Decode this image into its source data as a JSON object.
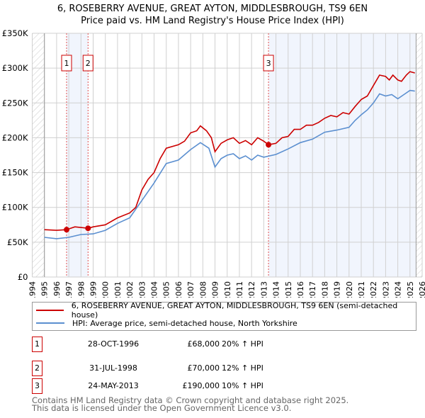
{
  "title": "6, ROSEBERRY AVENUE, GREAT AYTON, MIDDLESBROUGH, TS9 6EN",
  "subtitle": "Price paid vs. HM Land Registry's House Price Index (HPI)",
  "chart_data": {
    "type": "line",
    "title": "6, ROSEBERRY AVENUE, GREAT AYTON, MIDDLESBROUGH, TS9 6EN",
    "subtitle": "Price paid vs. HM Land Registry's House Price Index (HPI)",
    "xlim": [
      1994,
      2026
    ],
    "ylim": [
      0,
      350000
    ],
    "grid": true,
    "x_ticks": [
      "1994",
      "1995",
      "1996",
      "1997",
      "1998",
      "1999",
      "2000",
      "2001",
      "2002",
      "2003",
      "2004",
      "2005",
      "2006",
      "2007",
      "2008",
      "2009",
      "2010",
      "2011",
      "2012",
      "2013",
      "2014",
      "2015",
      "2016",
      "2017",
      "2018",
      "2019",
      "2020",
      "2021",
      "2022",
      "2023",
      "2024",
      "2025",
      "2026"
    ],
    "y_ticks": [
      {
        "v": 0,
        "label": "£0"
      },
      {
        "v": 50000,
        "label": "£50K"
      },
      {
        "v": 100000,
        "label": "£100K"
      },
      {
        "v": 150000,
        "label": "£150K"
      },
      {
        "v": 200000,
        "label": "£200K"
      },
      {
        "v": 250000,
        "label": "£250K"
      },
      {
        "v": 300000,
        "label": "£300K"
      },
      {
        "v": 350000,
        "label": "£350K"
      }
    ],
    "series": [
      {
        "name": "6, ROSEBERRY AVENUE, GREAT AYTON, MIDDLESBROUGH, TS9 6EN (semi-detached house)",
        "color": "#cc0000",
        "x": [
          1995,
          1996,
          1996.8,
          1997.5,
          1998.6,
          1999,
          2000,
          2001,
          2002,
          2002.5,
          2003,
          2003.5,
          2004,
          2004.5,
          2005,
          2006,
          2006.5,
          2007,
          2007.5,
          2007.8,
          2008.3,
          2008.7,
          2009,
          2009.5,
          2010,
          2010.5,
          2011,
          2011.5,
          2012,
          2012.5,
          2013,
          2013.4,
          2014,
          2014.5,
          2015,
          2015.5,
          2016,
          2016.5,
          2017,
          2017.5,
          2018,
          2018.5,
          2019,
          2019.5,
          2020,
          2020.5,
          2021,
          2021.5,
          2022,
          2022.5,
          2023,
          2023.3,
          2023.6,
          2024,
          2024.3,
          2024.7,
          2025,
          2025.4
        ],
        "y": [
          68000,
          67000,
          68000,
          72000,
          70000,
          72000,
          75000,
          85000,
          92000,
          100000,
          125000,
          140000,
          150000,
          170000,
          185000,
          190000,
          195000,
          207000,
          210000,
          217000,
          210000,
          200000,
          180000,
          192000,
          197000,
          200000,
          192000,
          196000,
          190000,
          200000,
          195000,
          190000,
          192000,
          200000,
          202000,
          212000,
          212000,
          218000,
          218000,
          222000,
          228000,
          232000,
          230000,
          236000,
          234000,
          245000,
          255000,
          260000,
          275000,
          290000,
          288000,
          283000,
          290000,
          283000,
          281000,
          290000,
          295000,
          293000
        ]
      },
      {
        "name": "HPI: Average price, semi-detached house, North Yorkshire",
        "color": "#5b8fd0",
        "x": [
          1995,
          1996,
          1997,
          1998,
          1999,
          2000,
          2001,
          2002,
          2003,
          2004,
          2005,
          2006,
          2007,
          2007.8,
          2008.5,
          2009,
          2009.5,
          2010,
          2010.5,
          2011,
          2011.5,
          2012,
          2012.5,
          2013,
          2014,
          2015,
          2016,
          2017,
          2018,
          2019,
          2020,
          2020.5,
          2021,
          2021.5,
          2022,
          2022.5,
          2023,
          2023.5,
          2024,
          2024.5,
          2025,
          2025.4
        ],
        "y": [
          57000,
          55000,
          57000,
          61000,
          62000,
          67000,
          77000,
          85000,
          110000,
          135000,
          163000,
          168000,
          183000,
          193000,
          185000,
          158000,
          170000,
          175000,
          177000,
          170000,
          174000,
          168000,
          175000,
          172000,
          176000,
          184000,
          193000,
          198000,
          208000,
          211000,
          215000,
          225000,
          233000,
          240000,
          250000,
          263000,
          260000,
          262000,
          256000,
          262000,
          268000,
          267000
        ]
      }
    ],
    "sales": [
      {
        "n": "1",
        "x": 1996.82,
        "y": 68000
      },
      {
        "n": "2",
        "x": 1998.58,
        "y": 70000
      },
      {
        "n": "3",
        "x": 2013.39,
        "y": 190000
      }
    ],
    "shaded_ranges": [
      [
        1996.82,
        1998.58
      ],
      [
        2013.39,
        2025.5
      ]
    ],
    "data_end": 2025.5,
    "legend": "bottom"
  },
  "legend": {
    "property": "6, ROSEBERRY AVENUE, GREAT AYTON, MIDDLESBROUGH, TS9 6EN (semi-detached house)",
    "hpi": "HPI: Average price, semi-detached house, North Yorkshire"
  },
  "sales_table": [
    {
      "n": "1",
      "date": "28-OCT-1996",
      "price": "£68,000",
      "hpi": "20% ↑ HPI"
    },
    {
      "n": "2",
      "date": "31-JUL-1998",
      "price": "£70,000",
      "hpi": "12% ↑ HPI"
    },
    {
      "n": "3",
      "date": "24-MAY-2013",
      "price": "£190,000",
      "hpi": "10% ↑ HPI"
    }
  ],
  "footer": {
    "line1": "Contains HM Land Registry data © Crown copyright and database right 2025.",
    "line2": "This data is licensed under the Open Government Licence v3.0."
  }
}
